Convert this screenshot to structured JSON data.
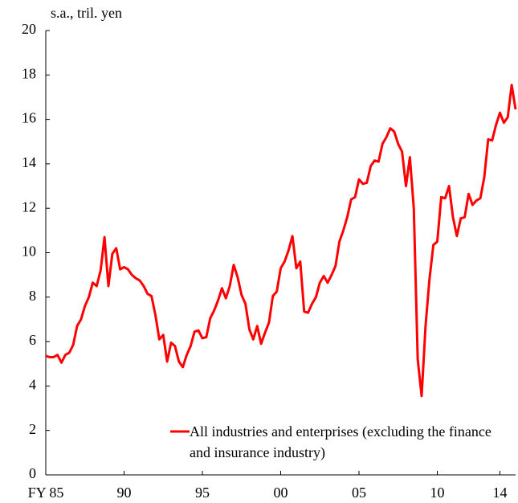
{
  "chart_data": {
    "type": "line",
    "y_axis_label": "s.a., tril. yen",
    "x": [
      1985,
      1985.25,
      1985.5,
      1985.75,
      1986,
      1986.25,
      1986.5,
      1986.75,
      1987,
      1987.25,
      1987.5,
      1987.75,
      1988,
      1988.25,
      1988.5,
      1988.75,
      1989,
      1989.25,
      1989.5,
      1989.75,
      1990,
      1990.25,
      1990.5,
      1990.75,
      1991,
      1991.25,
      1991.5,
      1991.75,
      1992,
      1992.25,
      1992.5,
      1992.75,
      1993,
      1993.25,
      1993.5,
      1993.75,
      1994,
      1994.25,
      1994.5,
      1994.75,
      1995,
      1995.25,
      1995.5,
      1995.75,
      1996,
      1996.25,
      1996.5,
      1996.75,
      1997,
      1997.25,
      1997.5,
      1997.75,
      1998,
      1998.25,
      1998.5,
      1998.75,
      1999,
      1999.25,
      1999.5,
      1999.75,
      2000,
      2000.25,
      2000.5,
      2000.75,
      2001,
      2001.25,
      2001.5,
      2001.75,
      2002,
      2002.25,
      2002.5,
      2002.75,
      2003,
      2003.25,
      2003.5,
      2003.75,
      2004,
      2004.25,
      2004.5,
      2004.75,
      2005,
      2005.25,
      2005.5,
      2005.75,
      2006,
      2006.25,
      2006.5,
      2006.75,
      2007,
      2007.25,
      2007.5,
      2007.75,
      2008,
      2008.25,
      2008.5,
      2008.75,
      2009,
      2009.25,
      2009.5,
      2009.75,
      2010,
      2010.25,
      2010.5,
      2010.75,
      2011,
      2011.25,
      2011.5,
      2011.75,
      2012,
      2012.25,
      2012.5,
      2012.75,
      2013,
      2013.25,
      2013.5,
      2013.75,
      2014,
      2014.25,
      2014.5,
      2014.75,
      2015
    ],
    "series": [
      {
        "name": "All industries and enterprises (excluding the finance and insurance industry)",
        "color": "#ff0000",
        "values": [
          5.35,
          5.3,
          5.3,
          5.4,
          5.05,
          5.4,
          5.5,
          5.85,
          6.7,
          7.0,
          7.6,
          8.0,
          8.65,
          8.5,
          9.2,
          10.7,
          8.5,
          9.95,
          10.2,
          9.25,
          9.35,
          9.25,
          9.0,
          8.85,
          8.75,
          8.5,
          8.15,
          8.05,
          7.2,
          6.1,
          6.3,
          5.1,
          5.95,
          5.8,
          5.1,
          4.85,
          5.4,
          5.8,
          6.45,
          6.5,
          6.15,
          6.2,
          7.05,
          7.4,
          7.85,
          8.4,
          7.95,
          8.5,
          9.45,
          8.9,
          8.1,
          7.7,
          6.55,
          6.1,
          6.7,
          5.9,
          6.4,
          6.85,
          8.05,
          8.25,
          9.3,
          9.6,
          10.1,
          10.75,
          9.3,
          9.6,
          7.35,
          7.3,
          7.7,
          8.0,
          8.65,
          8.95,
          8.65,
          9.0,
          9.4,
          10.5,
          11.0,
          11.6,
          12.4,
          12.5,
          13.3,
          13.1,
          13.15,
          13.9,
          14.15,
          14.1,
          14.9,
          15.2,
          15.6,
          15.45,
          14.9,
          14.55,
          13.0,
          14.3,
          12.0,
          5.2,
          3.55,
          6.7,
          8.8,
          10.35,
          10.5,
          12.5,
          12.45,
          13.0,
          11.6,
          10.75,
          11.55,
          11.6,
          12.65,
          12.15,
          12.35,
          12.45,
          13.4,
          15.1,
          15.05,
          15.75,
          16.3,
          15.85,
          16.1,
          17.55,
          16.45
        ]
      }
    ],
    "xlim": [
      1985,
      2015
    ],
    "xticks": [
      {
        "value": 1985,
        "label": "FY 85"
      },
      {
        "value": 1990,
        "label": "90"
      },
      {
        "value": 1995,
        "label": "95"
      },
      {
        "value": 2000,
        "label": "00"
      },
      {
        "value": 2005,
        "label": "05"
      },
      {
        "value": 2010,
        "label": "10"
      },
      {
        "value": 2014,
        "label": "14"
      }
    ],
    "ylim": [
      0,
      20
    ],
    "yticks": [
      0,
      2,
      4,
      6,
      8,
      10,
      12,
      14,
      16,
      18,
      20
    ],
    "grid": false,
    "legend_position": "lower right"
  }
}
